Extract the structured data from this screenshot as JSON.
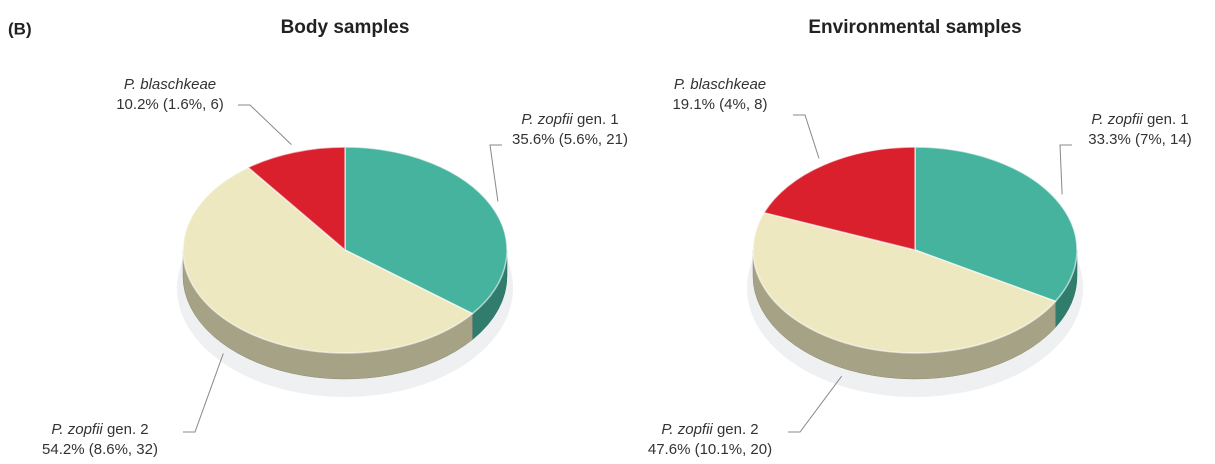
{
  "panel_label": "(B)",
  "chart_data": [
    {
      "type": "pie3d",
      "title": "Body samples",
      "categories": [
        "P. zopfii gen. 1",
        "P. zopfii gen. 2",
        "P. blaschkeae"
      ],
      "values": [
        35.6,
        54.2,
        10.2
      ],
      "value_labels": [
        "35.6% (5.6%, 21)",
        "54.2% (8.6%, 32)",
        "10.2% (1.6%, 6)"
      ],
      "colors": [
        "#45b39d",
        "#ede8c0",
        "#d9202c"
      ]
    },
    {
      "type": "pie3d",
      "title": "Environmental samples",
      "categories": [
        "P. zopfii gen. 1",
        "P. zopfii gen. 2",
        "P. blaschkeae"
      ],
      "values": [
        33.3,
        47.6,
        19.1
      ],
      "value_labels": [
        "33.3% (7%, 14)",
        "47.6% (10.1%, 20)",
        "19.1% (4%, 8)"
      ],
      "colors": [
        "#45b39d",
        "#ede8c0",
        "#d9202c"
      ]
    }
  ]
}
